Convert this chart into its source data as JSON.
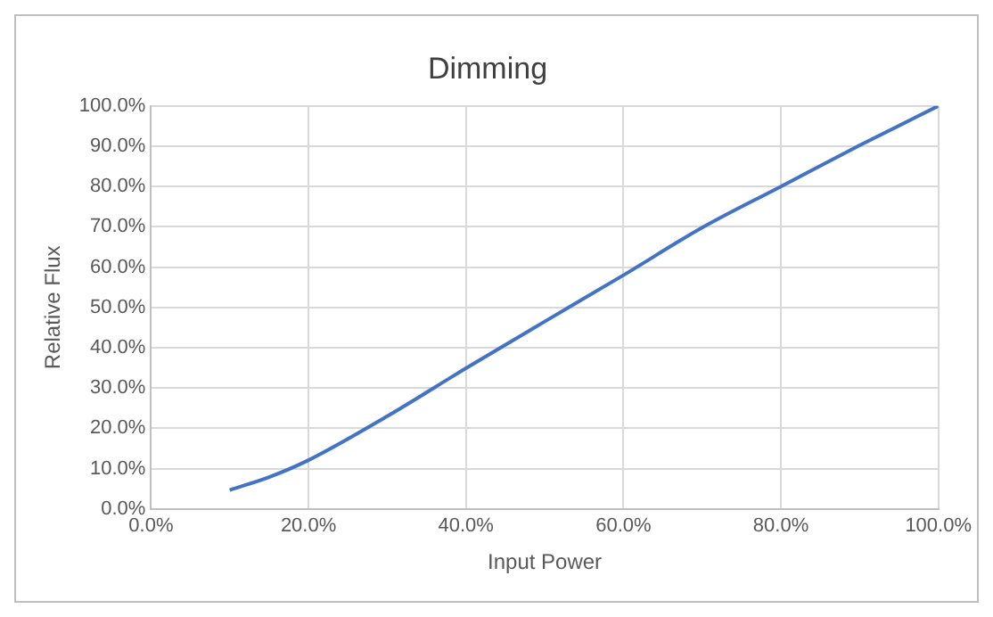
{
  "chart_data": {
    "type": "line",
    "title": "Dimming",
    "xlabel": "Input Power",
    "ylabel": "Relative Flux",
    "x": [
      10,
      15,
      20,
      30,
      40,
      50,
      60,
      70,
      80,
      90,
      100
    ],
    "series": [
      {
        "color": "#4472c4",
        "values": [
          4.7,
          7.9,
          12.1,
          23,
          34.9,
          46.5,
          58,
          69.8,
          80,
          90.2,
          100
        ]
      }
    ],
    "xlim": [
      0,
      100
    ],
    "xticks": [
      {
        "value": 0,
        "label": "0.0%"
      },
      {
        "value": 20,
        "label": "20.0%"
      },
      {
        "value": 40,
        "label": "40.0%"
      },
      {
        "value": 60,
        "label": "60.0%"
      },
      {
        "value": 80,
        "label": "80.0%"
      },
      {
        "value": 100,
        "label": "100.0%"
      }
    ],
    "ylim": [
      0,
      100
    ],
    "yticks": [
      {
        "value": 0,
        "label": "0.0%"
      },
      {
        "value": 10,
        "label": "10.0%"
      },
      {
        "value": 20,
        "label": "20.0%"
      },
      {
        "value": 30,
        "label": "30.0%"
      },
      {
        "value": 40,
        "label": "40.0%"
      },
      {
        "value": 50,
        "label": "50.0%"
      },
      {
        "value": 60,
        "label": "60.0%"
      },
      {
        "value": 70,
        "label": "70.0%"
      },
      {
        "value": 80,
        "label": "80.0%"
      },
      {
        "value": 90,
        "label": "90.0%"
      },
      {
        "value": 100,
        "label": "100.0%"
      }
    ],
    "grid": true,
    "legend": false,
    "marker": "none",
    "line_style": "solid"
  }
}
